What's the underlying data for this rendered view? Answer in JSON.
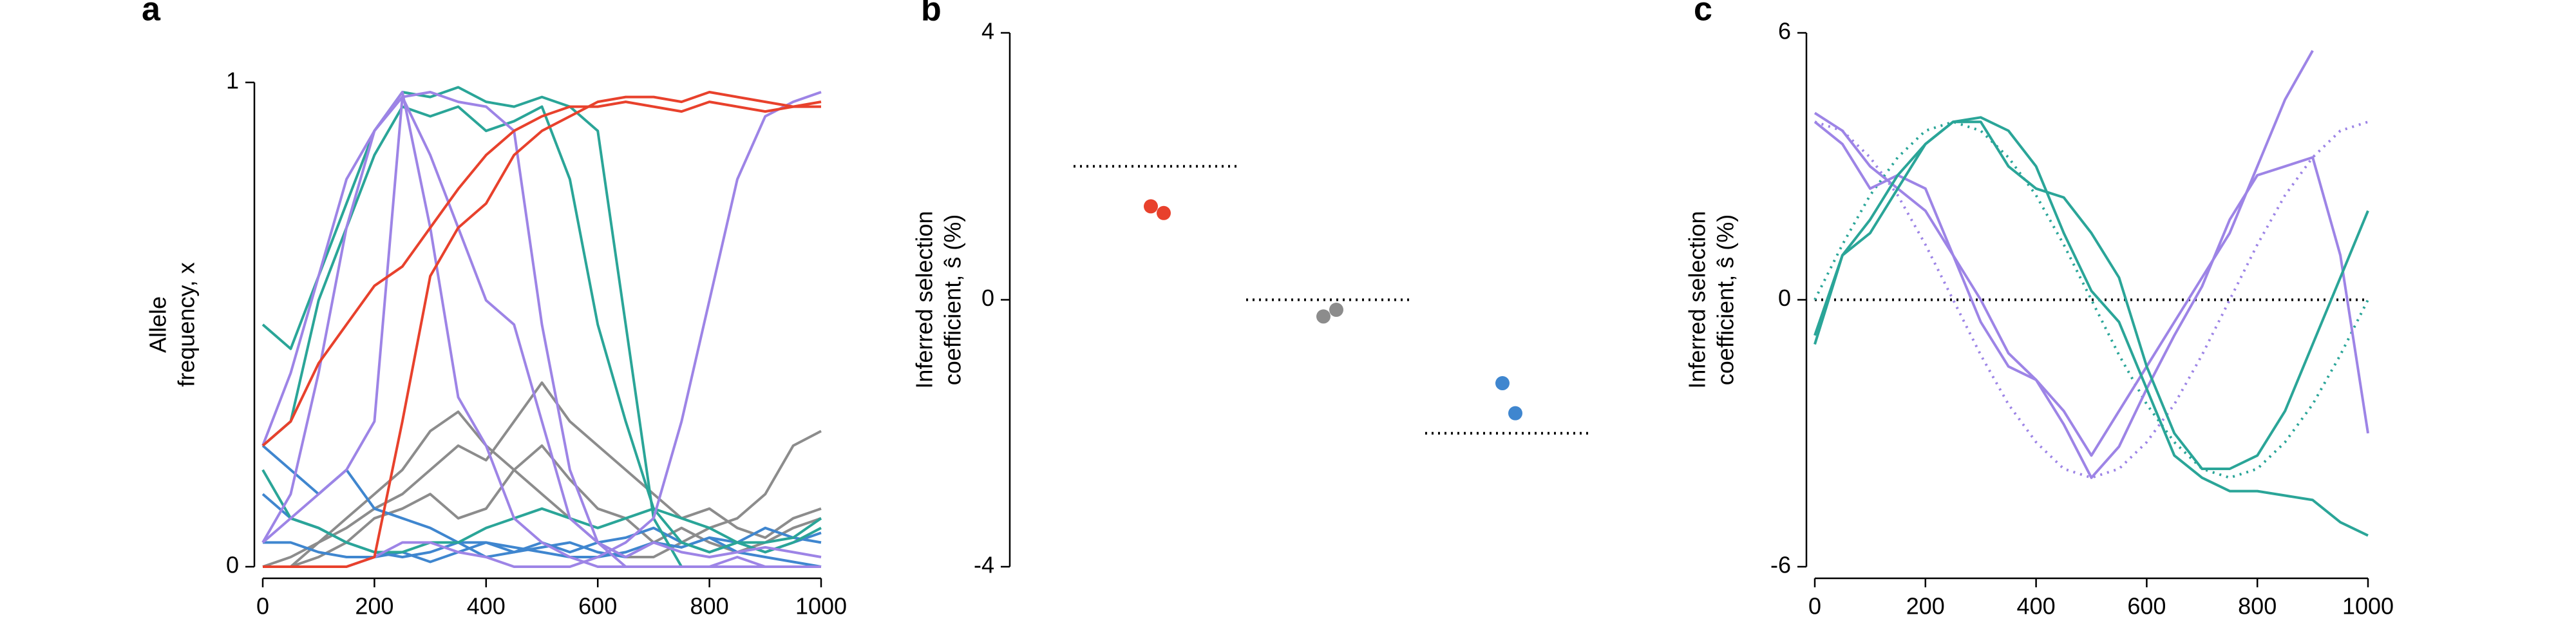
{
  "chart_data": [
    {
      "type": "line",
      "panel_label": "a",
      "ylabel": [
        "Allele",
        "frequency, x"
      ],
      "x": [
        0,
        50,
        100,
        150,
        200,
        250,
        300,
        350,
        400,
        450,
        500,
        550,
        600,
        650,
        700,
        750,
        800,
        850,
        900,
        950,
        1000
      ],
      "xlim": [
        0,
        1000
      ],
      "xticks": [
        0,
        200,
        400,
        600,
        800,
        1000
      ],
      "ylim": [
        0,
        1
      ],
      "yticks": [
        0,
        1
      ],
      "series": [
        {
          "color": "#8c8c8c",
          "values": [
            0,
            0,
            0.05,
            0.1,
            0.15,
            0.2,
            0.28,
            0.32,
            0.25,
            0.2,
            0.15,
            0.1,
            0.05,
            0.02,
            0.02,
            0.05,
            0.08,
            0.1,
            0.15,
            0.25,
            0.28
          ]
        },
        {
          "color": "#8c8c8c",
          "values": [
            0,
            0.02,
            0.05,
            0.08,
            0.12,
            0.15,
            0.2,
            0.25,
            0.22,
            0.3,
            0.38,
            0.3,
            0.25,
            0.2,
            0.15,
            0.1,
            0.12,
            0.08,
            0.06,
            0.1,
            0.12
          ]
        },
        {
          "color": "#8c8c8c",
          "values": [
            0,
            0,
            0.02,
            0.05,
            0.1,
            0.12,
            0.15,
            0.1,
            0.12,
            0.2,
            0.25,
            0.18,
            0.12,
            0.1,
            0.05,
            0.08,
            0.05,
            0.03,
            0.05,
            0.08,
            0.1
          ]
        },
        {
          "color": "#3f86cf",
          "values": [
            0.25,
            0.2,
            0.15,
            0.2,
            0.12,
            0.1,
            0.08,
            0.05,
            0.05,
            0.03,
            0.04,
            0.05,
            0.03,
            0.02,
            0.05,
            0.04,
            0.06,
            0.05,
            0.03,
            0.05,
            0.07
          ]
        },
        {
          "color": "#3f86cf",
          "values": [
            0.15,
            0.1,
            0.08,
            0.05,
            0.03,
            0.02,
            0.03,
            0.05,
            0.02,
            0.03,
            0.05,
            0.03,
            0.05,
            0.06,
            0.08,
            0.05,
            0.03,
            0.05,
            0.08,
            0.06,
            0.05
          ]
        },
        {
          "color": "#3f86cf",
          "values": [
            0.05,
            0.05,
            0.03,
            0.02,
            0.02,
            0.03,
            0.01,
            0.03,
            0.05,
            0.04,
            0.03,
            0.02,
            0.02,
            0.03,
            0.05,
            0.04,
            0.06,
            0.03,
            0.02,
            0.01,
            0
          ]
        },
        {
          "color": "#2aa598",
          "values": [
            0.2,
            0.1,
            0.08,
            0.05,
            0.03,
            0.03,
            0.05,
            0.05,
            0.08,
            0.1,
            0.12,
            0.1,
            0.08,
            0.1,
            0.12,
            0.1,
            0.08,
            0.05,
            0.05,
            0.06,
            0.1
          ]
        },
        {
          "color": "#2aa598",
          "values": [
            0.5,
            0.45,
            0.6,
            0.75,
            0.9,
            0.98,
            0.97,
            0.99,
            0.96,
            0.95,
            0.97,
            0.95,
            0.9,
            0.5,
            0.1,
            0,
            0,
            0,
            0,
            0,
            0
          ]
        },
        {
          "color": "#2aa598",
          "values": [
            0.25,
            0.3,
            0.55,
            0.7,
            0.85,
            0.95,
            0.93,
            0.95,
            0.9,
            0.92,
            0.95,
            0.8,
            0.5,
            0.3,
            0.12,
            0.05,
            0.03,
            0.05,
            0.03,
            0.05,
            0.08
          ]
        },
        {
          "color": "#9d84e6",
          "values": [
            0.25,
            0.4,
            0.6,
            0.8,
            0.9,
            0.97,
            0.98,
            0.96,
            0.95,
            0.9,
            0.5,
            0.2,
            0.05,
            0,
            0,
            0,
            0,
            0,
            0,
            0,
            0
          ]
        },
        {
          "color": "#9d84e6",
          "values": [
            0.05,
            0.15,
            0.4,
            0.7,
            0.9,
            0.98,
            0.7,
            0.35,
            0.25,
            0.1,
            0.05,
            0.02,
            0,
            0,
            0,
            0,
            0,
            0.02,
            0,
            0,
            0
          ]
        },
        {
          "color": "#9d84e6",
          "values": [
            0.05,
            0.1,
            0.15,
            0.2,
            0.3,
            0.97,
            0.85,
            0.7,
            0.55,
            0.5,
            0.3,
            0.1,
            0.05,
            0.02,
            0.05,
            0.03,
            0.02,
            0.03,
            0.04,
            0.03,
            0.02
          ]
        },
        {
          "color": "#9d84e6",
          "values": [
            0,
            0,
            0,
            0,
            0.02,
            0.05,
            0.05,
            0.03,
            0.02,
            0,
            0,
            0,
            0.02,
            0.05,
            0.1,
            0.3,
            0.55,
            0.8,
            0.93,
            0.96,
            0.98
          ]
        },
        {
          "color": "#e8412c",
          "values": [
            0.25,
            0.3,
            0.42,
            0.5,
            0.58,
            0.62,
            0.7,
            0.78,
            0.85,
            0.9,
            0.93,
            0.95,
            0.95,
            0.96,
            0.95,
            0.94,
            0.96,
            0.95,
            0.94,
            0.95,
            0.95
          ]
        },
        {
          "color": "#e8412c",
          "values": [
            0,
            0,
            0,
            0,
            0.02,
            0.3,
            0.6,
            0.7,
            0.75,
            0.85,
            0.9,
            0.93,
            0.96,
            0.97,
            0.97,
            0.96,
            0.98,
            0.97,
            0.96,
            0.95,
            0.96
          ]
        }
      ]
    },
    {
      "type": "strip",
      "panel_label": "b",
      "ylabel": [
        "Inferred selection",
        "coefficient, ŝ (%)"
      ],
      "ylim": [
        -4,
        4
      ],
      "yticks": [
        -4,
        0,
        4
      ],
      "groups": [
        {
          "color": "#e8412c",
          "true_value": 2,
          "values": [
            1.4,
            1.3
          ]
        },
        {
          "color": "#8c8c8c",
          "true_value": 0,
          "values": [
            -0.25,
            -0.15
          ]
        },
        {
          "color": "#3f86cf",
          "true_value": -2,
          "values": [
            -1.25,
            -1.7
          ]
        }
      ]
    },
    {
      "type": "line",
      "panel_label": "c",
      "ylabel": [
        "Inferred selection",
        "coefficient, ŝ (%)"
      ],
      "x": [
        0,
        50,
        100,
        150,
        200,
        250,
        300,
        350,
        400,
        450,
        500,
        550,
        600,
        650,
        700,
        750,
        800,
        850,
        900,
        950,
        1000
      ],
      "xlim": [
        0,
        1000
      ],
      "xticks": [
        0,
        200,
        400,
        600,
        800,
        1000
      ],
      "ylim": [
        -6,
        6
      ],
      "yticks": [
        -6,
        0,
        6
      ],
      "reference_line": 0,
      "series": [
        {
          "color": "#9d84e6",
          "dashed": true,
          "values": [
            4,
            3.8,
            3.2,
            2.35,
            1.24,
            0,
            -1.24,
            -2.35,
            -3.2,
            -3.8,
            -4,
            -3.8,
            -3.2,
            -2.35,
            -1.24,
            0,
            1.24,
            2.35,
            3.2,
            3.8,
            4
          ]
        },
        {
          "color": "#2aa598",
          "dashed": true,
          "values": [
            0,
            1.24,
            2.35,
            3.2,
            3.8,
            4,
            3.8,
            3.2,
            2.35,
            1.24,
            0,
            -1.24,
            -2.35,
            -3.2,
            -3.8,
            -4,
            -3.8,
            -3.2,
            -2.35,
            -1.24,
            0
          ]
        },
        {
          "color": "#9d84e6",
          "values": [
            4.2,
            3.8,
            3.0,
            2.5,
            2.0,
            1.0,
            0,
            -1.2,
            -1.8,
            -2.5,
            -3.5,
            -2.5,
            -1.5,
            -0.5,
            0.5,
            1.5,
            3.0,
            4.5,
            5.6,
            null,
            null
          ]
        },
        {
          "color": "#9d84e6",
          "values": [
            4.0,
            3.5,
            2.5,
            2.8,
            2.5,
            1.0,
            -0.5,
            -1.5,
            -1.8,
            -2.8,
            -4.0,
            -3.3,
            -2.0,
            -0.8,
            0.3,
            1.8,
            2.8,
            3.0,
            3.2,
            1.0,
            -3.0
          ]
        },
        {
          "color": "#2aa598",
          "values": [
            -1,
            1.0,
            1.5,
            2.5,
            3.5,
            4.0,
            4.0,
            3.0,
            2.5,
            2.3,
            1.5,
            0.5,
            -1.5,
            -3.0,
            -3.8,
            -3.8,
            -3.5,
            -2.5,
            -1.0,
            0.5,
            2.0
          ]
        },
        {
          "color": "#2aa598",
          "values": [
            -0.8,
            1.0,
            1.8,
            2.8,
            3.5,
            4.0,
            4.1,
            3.8,
            3.0,
            1.5,
            0.2,
            -0.5,
            -2.0,
            -3.5,
            -4.0,
            -4.3,
            -4.3,
            -4.4,
            -4.5,
            -5.0,
            -5.3
          ]
        }
      ]
    }
  ]
}
